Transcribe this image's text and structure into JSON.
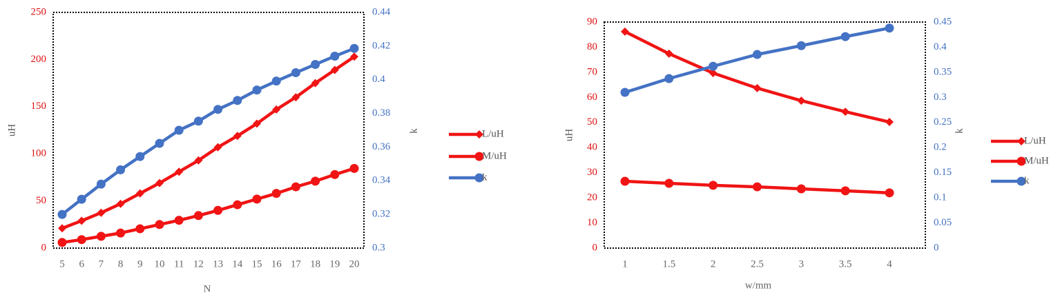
{
  "chart_data": [
    {
      "type": "line",
      "x_label": "N",
      "y_label": "uH",
      "y2_label": "k",
      "categories": [
        5,
        6,
        7,
        8,
        9,
        10,
        11,
        12,
        13,
        14,
        15,
        16,
        17,
        18,
        19,
        20
      ],
      "series": [
        {
          "name": "L/uH",
          "color": "#f01414",
          "marker": "diamond",
          "values": [
            21,
            29,
            37.5,
            47,
            58,
            69,
            81,
            93,
            107,
            119,
            132,
            147,
            160,
            175,
            189,
            203
          ]
        },
        {
          "name": "M/uH",
          "color": "#f01414",
          "marker": "circle",
          "values": [
            6,
            9,
            12.5,
            16,
            20.5,
            25,
            29.5,
            34.5,
            40,
            46,
            52,
            58,
            65,
            71,
            78,
            84.5
          ]
        },
        {
          "name": "k",
          "color": "#4472c4",
          "marker": "circle",
          "axis": "y2",
          "values": [
            0.32,
            0.329,
            0.338,
            0.3465,
            0.3544,
            0.3622,
            0.37,
            0.3754,
            0.3824,
            0.3877,
            0.3939,
            0.3992,
            0.4042,
            0.4091,
            0.414,
            0.4186
          ]
        }
      ],
      "ylim": [
        0,
        250
      ],
      "yticks": [
        0,
        50,
        100,
        150,
        200,
        250
      ],
      "y2lim": [
        0.3,
        0.44
      ],
      "y2ticks": [
        0.3,
        0.32,
        0.34,
        0.36,
        0.38,
        0.4,
        0.42,
        0.44
      ]
    },
    {
      "type": "line",
      "x_label": "w/mm",
      "y_label": "uH",
      "y2_label": "k",
      "categories": [
        1,
        1.5,
        2,
        2.5,
        3,
        3.5,
        4
      ],
      "series": [
        {
          "name": "L/uH",
          "color": "#f01414",
          "marker": "diamond",
          "values": [
            86.2,
            77.4,
            69.7,
            63.7,
            58.7,
            54.3,
            50.2
          ]
        },
        {
          "name": "M/uH",
          "color": "#f01414",
          "marker": "circle",
          "values": [
            26.6,
            25.8,
            25,
            24.4,
            23.6,
            22.8,
            22
          ]
        },
        {
          "name": "k",
          "color": "#4472c4",
          "marker": "circle",
          "axis": "y2",
          "values": [
            0.31,
            0.3375,
            0.362,
            0.3855,
            0.403,
            0.421,
            0.438
          ]
        }
      ],
      "ylim": [
        0,
        90
      ],
      "yticks": [
        0,
        10,
        20,
        30,
        40,
        50,
        60,
        70,
        80,
        90
      ],
      "y2lim": [
        0,
        0.45
      ],
      "y2ticks": [
        0,
        0.05,
        0.1,
        0.15,
        0.2,
        0.25,
        0.3,
        0.35,
        0.4,
        0.45
      ]
    }
  ]
}
